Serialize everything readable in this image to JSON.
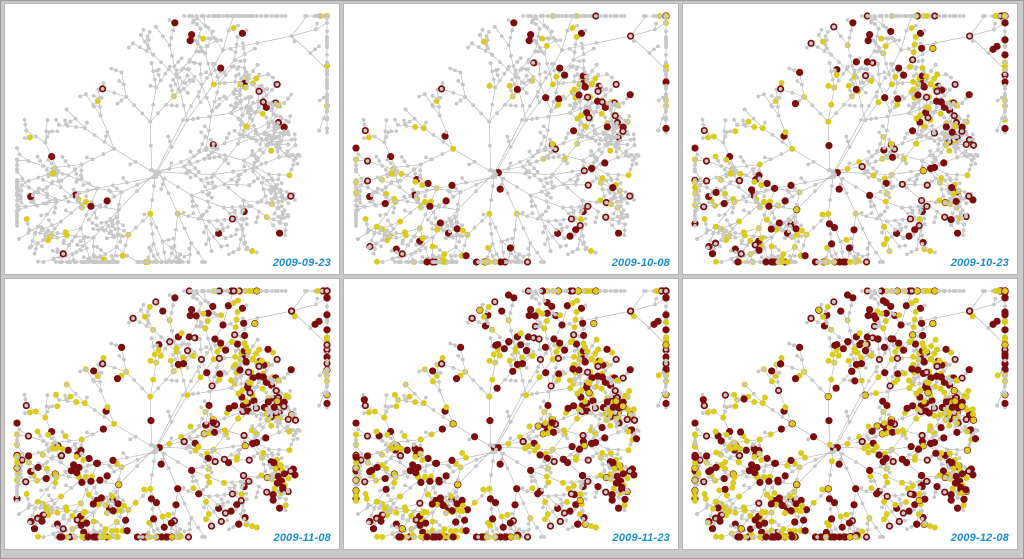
{
  "panels": [
    {
      "date": "2009-09-23",
      "infected_fraction": 0.04
    },
    {
      "date": "2009-10-08",
      "infected_fraction": 0.12
    },
    {
      "date": "2009-10-23",
      "infected_fraction": 0.22
    },
    {
      "date": "2009-11-08",
      "infected_fraction": 0.34
    },
    {
      "date": "2009-11-23",
      "infected_fraction": 0.45
    },
    {
      "date": "2009-12-08",
      "infected_fraction": 0.55
    }
  ],
  "colors": {
    "uninfected_node": "#c8c8c8",
    "uninfected_edge": "#b0b0b0",
    "yellow_node": "#d9cc1f",
    "red_node": "#7d0d0d",
    "date_label": "#1a8fd8"
  }
}
